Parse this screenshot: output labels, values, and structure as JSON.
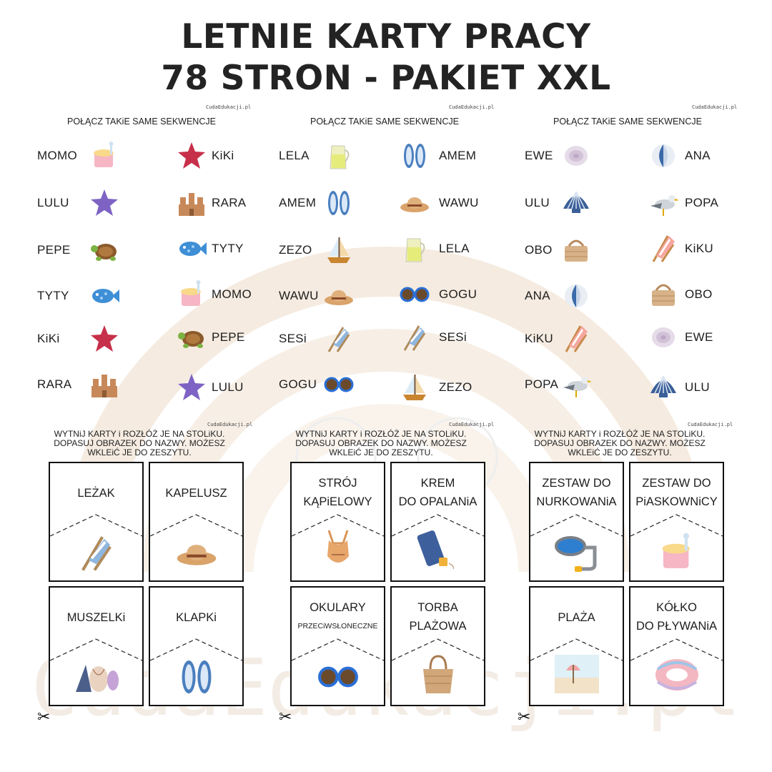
{
  "title": {
    "line1": "LETNIE KARTY PRACY",
    "line2": "78 STRON - PAKIET XXL"
  },
  "brand": "CudaEdukacji.pl",
  "watermark": "CudaEdukacji.pl",
  "match_instruction": "POŁĄCZ TAKiE SAME SEKWENCJE",
  "match_panels": [
    {
      "left": [
        {
          "word": "MOMO",
          "icon": "sand-bucket-icon"
        },
        {
          "word": "LULU",
          "icon": "purple-starfish-icon"
        },
        {
          "word": "PEPE",
          "icon": "turtle-icon"
        },
        {
          "word": "TYTY",
          "icon": "blue-fish-icon"
        },
        {
          "word": "KiKi",
          "icon": "red-starfish-icon"
        },
        {
          "word": "RARA",
          "icon": "sandcastle-icon"
        }
      ],
      "right": [
        {
          "word": "KiKi",
          "icon": "red-starfish-icon"
        },
        {
          "word": "RARA",
          "icon": "sandcastle-icon"
        },
        {
          "word": "TYTY",
          "icon": "blue-fish-icon"
        },
        {
          "word": "MOMO",
          "icon": "sand-bucket-icon"
        },
        {
          "word": "PEPE",
          "icon": "turtle-icon"
        },
        {
          "word": "LULU",
          "icon": "purple-starfish-icon"
        }
      ]
    },
    {
      "left": [
        {
          "word": "LELA",
          "icon": "lemonade-jug-icon"
        },
        {
          "word": "AMEM",
          "icon": "flip-flops-icon"
        },
        {
          "word": "ZEZO",
          "icon": "sailboat-icon"
        },
        {
          "word": "WAWU",
          "icon": "straw-hat-icon"
        },
        {
          "word": "SESi",
          "icon": "deck-chair-icon"
        },
        {
          "word": "GOGU",
          "icon": "sunglasses-icon"
        }
      ],
      "right": [
        {
          "word": "AMEM",
          "icon": "flip-flops-icon"
        },
        {
          "word": "WAWU",
          "icon": "straw-hat-icon"
        },
        {
          "word": "LELA",
          "icon": "lemonade-jug-icon"
        },
        {
          "word": "GOGU",
          "icon": "sunglasses-icon"
        },
        {
          "word": "SESi",
          "icon": "deck-chair-icon"
        },
        {
          "word": "ZEZO",
          "icon": "sailboat-icon"
        }
      ]
    },
    {
      "left": [
        {
          "word": "EWE",
          "icon": "spiral-shell-icon"
        },
        {
          "word": "ULU",
          "icon": "scallop-shell-icon"
        },
        {
          "word": "OBO",
          "icon": "basket-icon"
        },
        {
          "word": "ANA",
          "icon": "beach-ball-icon"
        },
        {
          "word": "KiKU",
          "icon": "pink-deck-chair-icon"
        },
        {
          "word": "POPA",
          "icon": "seagull-icon"
        }
      ],
      "right": [
        {
          "word": "ANA",
          "icon": "beach-ball-icon"
        },
        {
          "word": "POPA",
          "icon": "seagull-icon"
        },
        {
          "word": "KiKU",
          "icon": "pink-deck-chair-icon"
        },
        {
          "word": "OBO",
          "icon": "basket-icon"
        },
        {
          "word": "EWE",
          "icon": "spiral-shell-icon"
        },
        {
          "word": "ULU",
          "icon": "scallop-shell-icon"
        }
      ]
    }
  ],
  "card_instruction": "WYTNiJ KARTY i ROZŁÓŻ JE NA STOLiKU. DOPASUJ OBRAZEK DO NAZWY. MOŻESZ WKLEiĆ JE DO ZESZYTU.",
  "card_instruction_lines": [
    "WYTNiJ KARTY i ROZŁÓŻ JE NA STOLiKU.",
    "DOPASUJ OBRAZEK DO NAZWY. MOŻESZ",
    "WKLEiĆ JE DO ZESZYTU."
  ],
  "card_panels": [
    {
      "cards": [
        {
          "lines": [
            "LEŻAK"
          ],
          "icon": "deck-chair-icon"
        },
        {
          "lines": [
            "KAPELUSZ"
          ],
          "icon": "straw-hat-icon"
        },
        {
          "lines": [
            "MUSZELKi"
          ],
          "icon": "seashells-icon"
        },
        {
          "lines": [
            "KLAPKi"
          ],
          "icon": "flip-flops-icon"
        }
      ]
    },
    {
      "cards": [
        {
          "lines": [
            "STRÓJ",
            "KĄPiELOWY"
          ],
          "icon": "swimsuit-icon"
        },
        {
          "lines": [
            "KREM",
            "DO OPALANiA"
          ],
          "icon": "sunscreen-icon"
        },
        {
          "lines": [
            "OKULARY",
            "PRZECiWSŁONECZNE"
          ],
          "icon": "sunglasses-icon"
        },
        {
          "lines": [
            "TORBA",
            "PLAŻOWA"
          ],
          "icon": "beach-bag-icon"
        }
      ]
    },
    {
      "cards": [
        {
          "lines": [
            "ZESTAW DO",
            "NURKOWANiA"
          ],
          "icon": "snorkel-mask-icon"
        },
        {
          "lines": [
            "ZESTAW DO",
            "PiASKOWNiCY"
          ],
          "icon": "sand-bucket-icon"
        },
        {
          "lines": [
            "PLAŻA"
          ],
          "icon": "beach-scene-icon"
        },
        {
          "lines": [
            "KÓŁKO",
            "DO PŁYWANiA"
          ],
          "icon": "swim-ring-icon"
        }
      ]
    }
  ],
  "scissors": "✂",
  "colors": {
    "title": "#232323",
    "rainbow": "#f3e8dc",
    "card_border": "#111111"
  }
}
